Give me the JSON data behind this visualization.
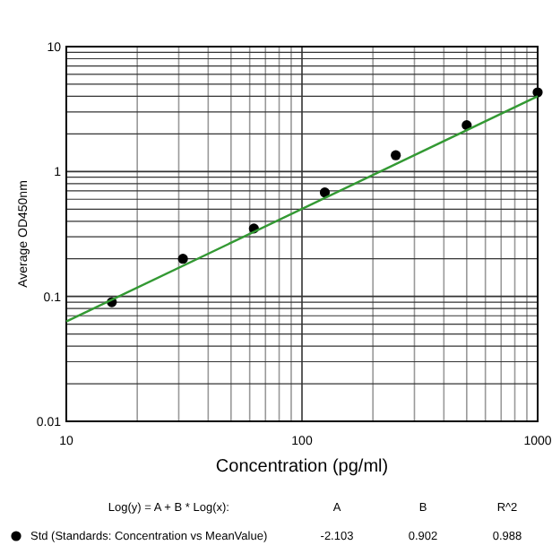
{
  "chart_data": {
    "type": "scatter",
    "ylabel": "Average OD450nm",
    "xlabel": "Concentration (pg/ml)",
    "log": "xy",
    "grid": true,
    "legend": "bottom",
    "xlim": [
      10,
      1000
    ],
    "xticks": [
      10,
      100,
      1000
    ],
    "ylim": [
      0.01,
      10
    ],
    "yticks": [
      0.01,
      0.1,
      1,
      10
    ],
    "series": [
      {
        "name": "Std (Standards: Concentration vs MeanValue)",
        "marker": "circle",
        "color": "#000000",
        "x": [
          15.6,
          31.25,
          62.5,
          125,
          250,
          500,
          1000
        ],
        "values": [
          0.09,
          0.2,
          0.35,
          0.68,
          1.35,
          2.35,
          4.3
        ]
      },
      {
        "type": "line",
        "marker": "none",
        "color": "#339933",
        "x": [
          10,
          1000
        ],
        "values": [
          0.063,
          4.0
        ]
      }
    ],
    "annotations": [
      "Log(y) = A + B * Log(x):",
      "A",
      "B",
      "R^2",
      "-2.103",
      "0.902",
      "0.988"
    ]
  }
}
